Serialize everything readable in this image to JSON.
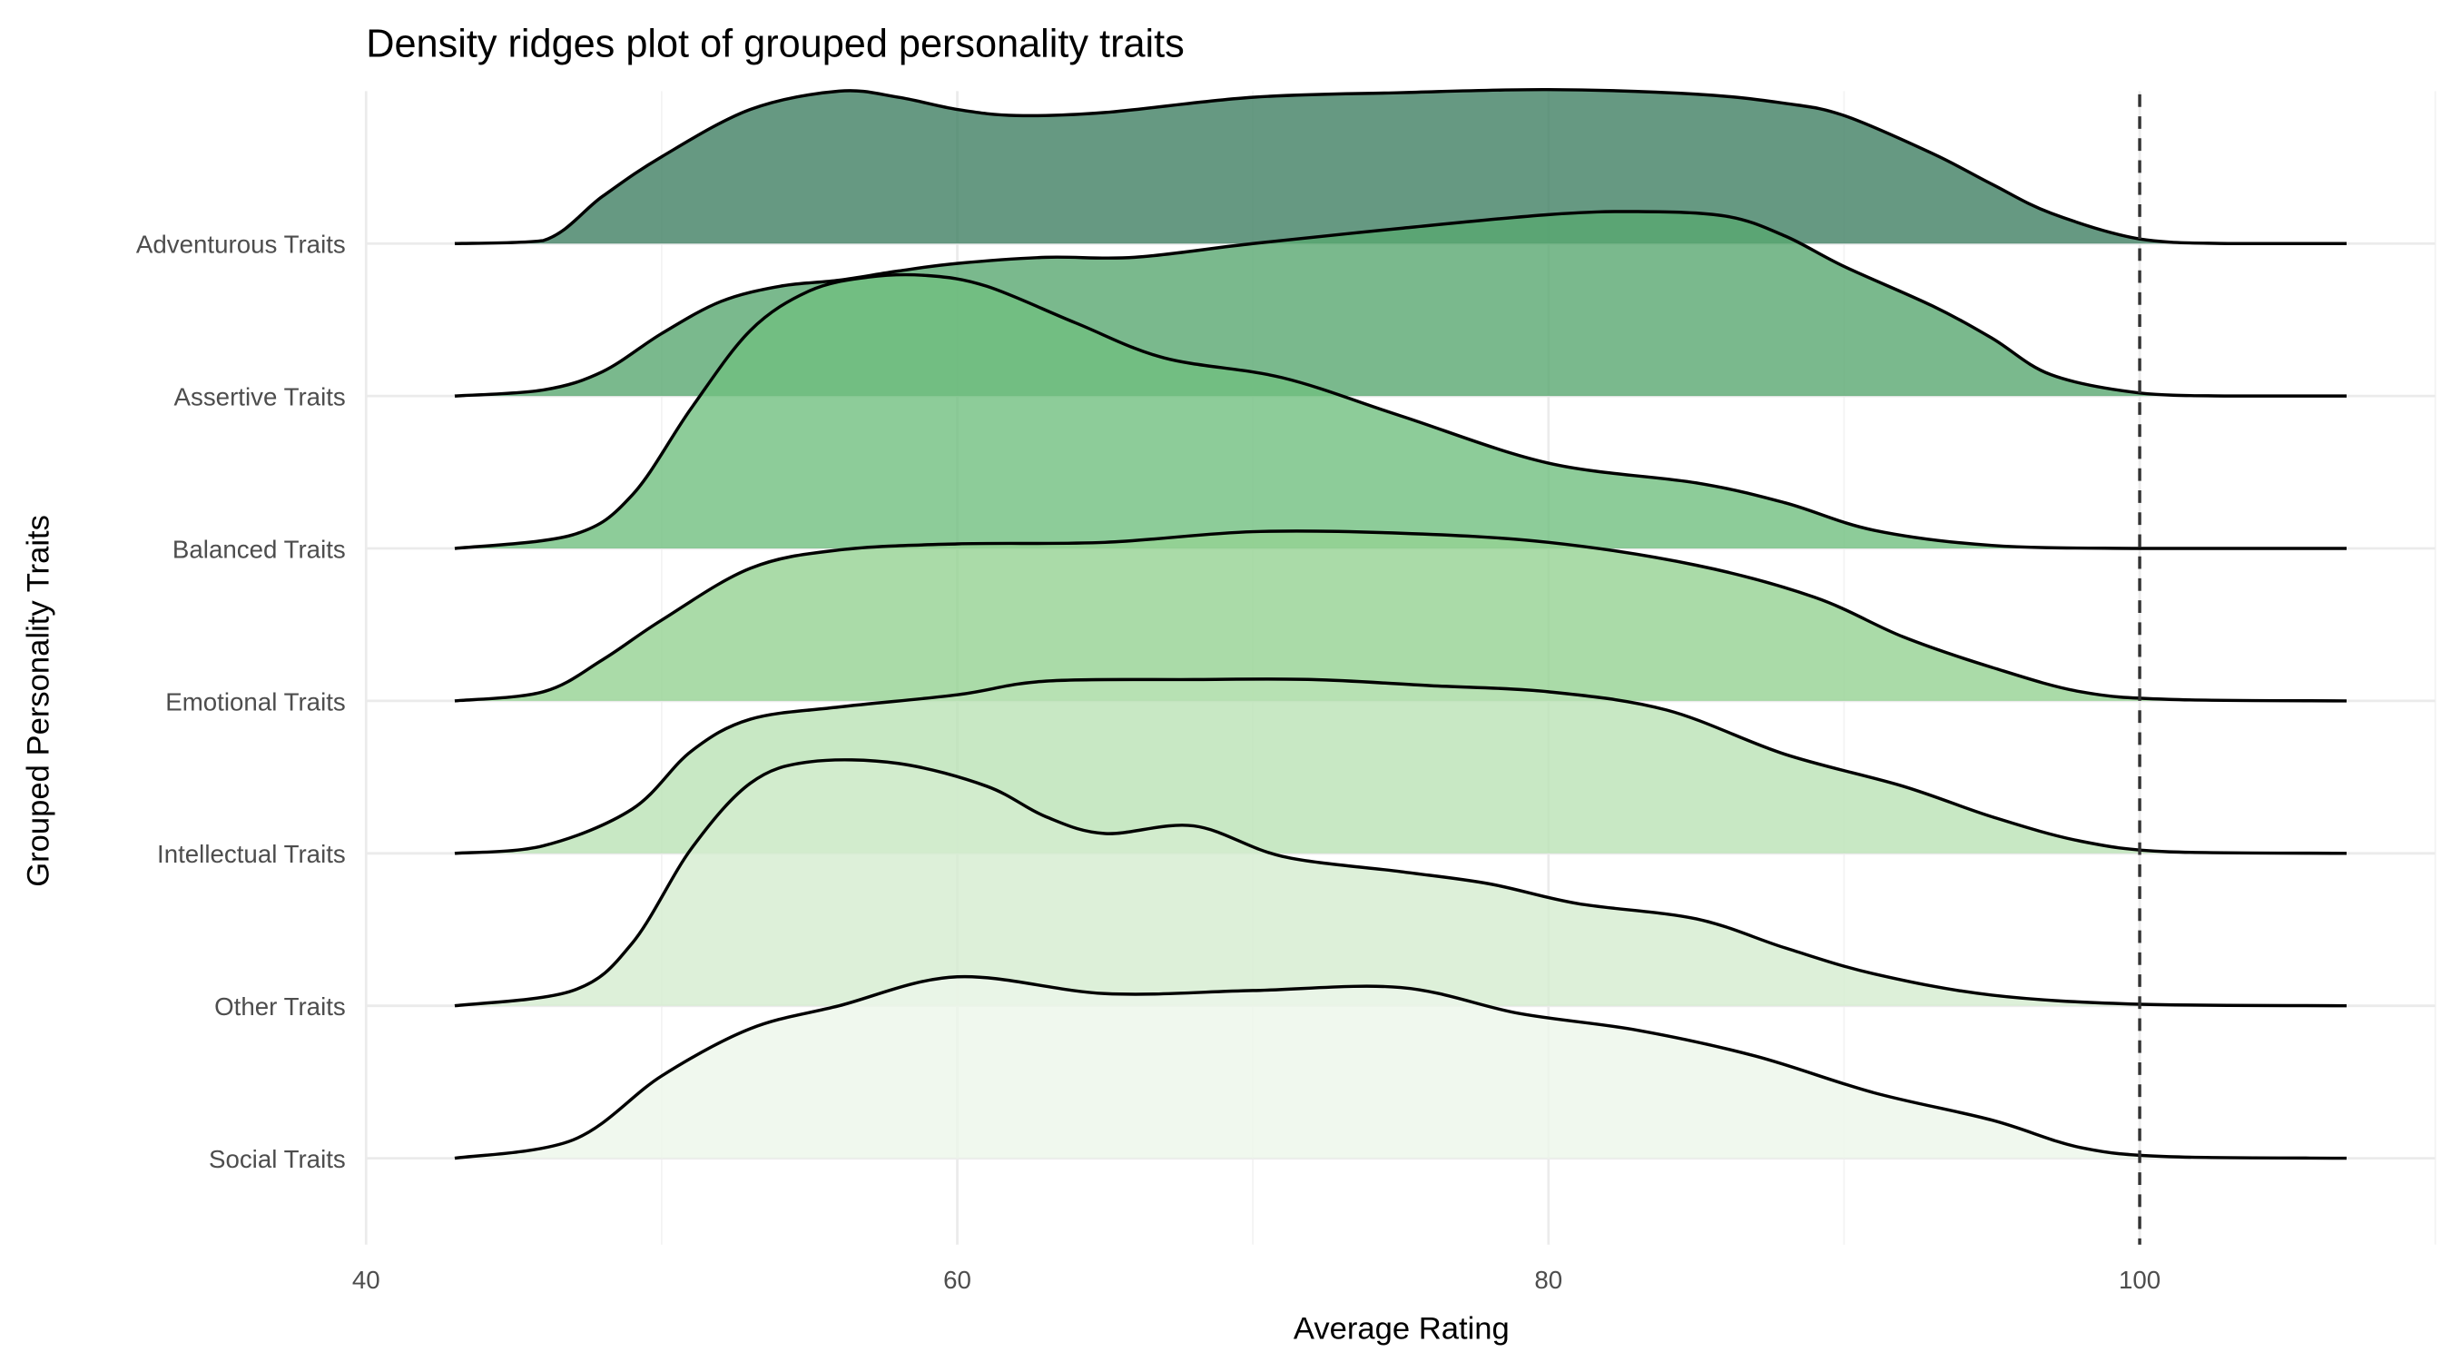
{
  "chart_data": {
    "type": "density_ridges",
    "title": "Density ridges plot of grouped personality traits",
    "xlabel": "Average Rating",
    "ylabel": "Grouped Personality Traits",
    "xlim": [
      40,
      110
    ],
    "x_ticks": [
      40,
      60,
      80,
      100
    ],
    "x_tick_labels": [
      "40",
      "60",
      "80",
      "100"
    ],
    "reference_line": {
      "x": 100,
      "style": "dashed"
    },
    "grid": true,
    "series": [
      {
        "name": "Adventurous Traits",
        "color": "#408063",
        "x": [
          43,
          46,
          48,
          50,
          53,
          56,
          58,
          60,
          62,
          65,
          70,
          75,
          80,
          85,
          88,
          90,
          93,
          95,
          97,
          100,
          103,
          107
        ],
        "height": [
          0,
          0.02,
          0.31,
          0.57,
          0.88,
          1.0,
          0.96,
          0.88,
          0.84,
          0.86,
          0.96,
          0.99,
          1.01,
          0.98,
          0.92,
          0.84,
          0.59,
          0.39,
          0.2,
          0.03,
          0,
          0
        ]
      },
      {
        "name": "Assertive Traits",
        "color": "#59a770",
        "x": [
          43,
          46,
          48,
          50,
          52,
          54,
          56,
          58,
          60,
          63,
          66,
          70,
          75,
          80,
          83,
          86,
          88,
          90,
          93,
          95,
          97,
          100,
          103,
          107
        ],
        "height": [
          0,
          0.04,
          0.16,
          0.41,
          0.62,
          0.72,
          0.76,
          0.82,
          0.87,
          0.91,
          0.91,
          1.0,
          1.1,
          1.19,
          1.21,
          1.18,
          1.05,
          0.85,
          0.59,
          0.38,
          0.14,
          0.02,
          0,
          0
        ]
      },
      {
        "name": "Balanced Traits",
        "color": "#70bf80",
        "x": [
          43,
          47,
          49,
          51,
          53,
          55,
          57,
          59,
          61,
          64,
          67,
          71,
          75,
          80,
          85,
          88,
          91,
          95,
          100,
          107
        ],
        "height": [
          0,
          0.09,
          0.35,
          0.92,
          1.43,
          1.69,
          1.78,
          1.79,
          1.72,
          1.48,
          1.25,
          1.12,
          0.87,
          0.56,
          0.43,
          0.3,
          0.12,
          0.02,
          0,
          0
        ]
      },
      {
        "name": "Emotional Traits",
        "color": "#95d292",
        "x": [
          43,
          46,
          48,
          50,
          53,
          56,
          60,
          65,
          70,
          75,
          80,
          85,
          89,
          92,
          95,
          98,
          101,
          107
        ],
        "height": [
          0,
          0.06,
          0.27,
          0.53,
          0.87,
          0.99,
          1.03,
          1.04,
          1.11,
          1.1,
          1.04,
          0.89,
          0.68,
          0.42,
          0.22,
          0.06,
          0.01,
          0
        ]
      },
      {
        "name": "Intellectual Traits",
        "color": "#bae2b5",
        "x": [
          43,
          46,
          49,
          51,
          53,
          56,
          60,
          63,
          68,
          72,
          76,
          80,
          84,
          88,
          92,
          95,
          98,
          101,
          107
        ],
        "height": [
          0,
          0.05,
          0.29,
          0.67,
          0.88,
          0.96,
          1.04,
          1.13,
          1.14,
          1.14,
          1.1,
          1.06,
          0.94,
          0.65,
          0.44,
          0.24,
          0.08,
          0.01,
          0
        ]
      },
      {
        "name": "Other Traits",
        "color": "#d5eccf",
        "x": [
          43,
          47,
          49,
          51,
          53,
          55,
          58,
          61,
          63,
          65,
          68,
          71,
          75,
          78,
          81,
          85,
          88,
          91,
          95,
          100,
          107
        ],
        "height": [
          0,
          0.1,
          0.41,
          1.03,
          1.46,
          1.6,
          1.59,
          1.44,
          1.24,
          1.13,
          1.18,
          0.98,
          0.88,
          0.8,
          0.67,
          0.57,
          0.38,
          0.21,
          0.07,
          0.01,
          0
        ]
      },
      {
        "name": "Social Traits",
        "color": "#ecf6ea",
        "x": [
          43,
          47,
          50,
          53,
          56,
          60,
          65,
          70,
          75,
          79,
          83,
          87,
          91,
          95,
          98,
          101,
          107
        ],
        "height": [
          0,
          0.12,
          0.54,
          0.85,
          1.0,
          1.19,
          1.08,
          1.1,
          1.12,
          0.95,
          0.84,
          0.67,
          0.43,
          0.25,
          0.07,
          0.01,
          0
        ]
      }
    ]
  }
}
